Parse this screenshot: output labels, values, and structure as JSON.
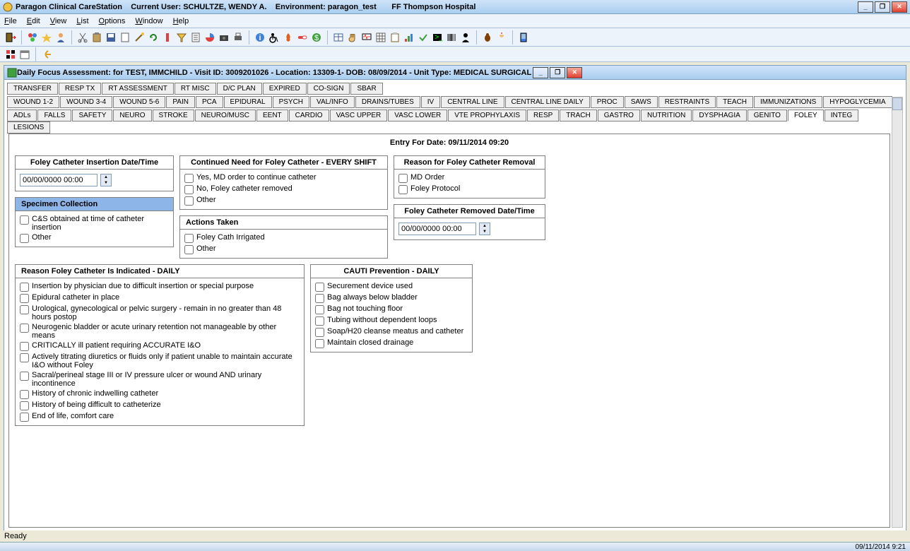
{
  "titlebar": {
    "app": "Paragon Clinical CareStation",
    "user_label": "Current User:",
    "user": "SCHULTZE, WENDY A.",
    "env_label": "Environment:",
    "env": "paragon_test",
    "facility": "FF Thompson Hospital"
  },
  "menu": [
    "File",
    "Edit",
    "View",
    "List",
    "Options",
    "Window",
    "Help"
  ],
  "panel_title": "Daily Focus Assessment:  for TEST, IMMCHILD - Visit ID: 3009201026 - Location: 13309-1- DOB: 08/09/2014 - Unit Type: MEDICAL SURGICAL",
  "tabs_row1": [
    "TRANSFER",
    "RESP TX",
    "RT ASSESSMENT",
    "RT MISC",
    "D/C PLAN",
    "EXPIRED",
    "CO-SIGN",
    "SBAR"
  ],
  "tabs_row2": [
    "WOUND 1-2",
    "WOUND 3-4",
    "WOUND 5-6",
    "PAIN",
    "PCA",
    "EPIDURAL",
    "PSYCH",
    "VAL/INFO",
    "DRAINS/TUBES",
    "IV",
    "CENTRAL LINE",
    "CENTRAL LINE DAILY",
    "PROC",
    "SAWS",
    "RESTRAINTS",
    "TEACH",
    "IMMUNIZATIONS",
    "HYPOGLYCEMIA"
  ],
  "tabs_row3": [
    "ADLs",
    "FALLS",
    "SAFETY",
    "NEURO",
    "STROKE",
    "NEURO/MUSC",
    "EENT",
    "CARDIO",
    "VASC UPPER",
    "VASC LOWER",
    "VTE PROPHYLAXIS",
    "RESP",
    "TRACH",
    "GASTRO",
    "NUTRITION",
    "DYSPHAGIA",
    "GENITO",
    "FOLEY",
    "INTEG",
    "LESIONS"
  ],
  "active_tab": "FOLEY",
  "entry_header": "Entry For Date: 09/11/2014 09:20",
  "box_insertion": {
    "title": "Foley Catheter Insertion Date/Time",
    "value": "00/00/0000 00:00"
  },
  "box_specimen": {
    "title": "Specimen Collection",
    "items": [
      "C&S obtained at time of catheter insertion",
      "Other"
    ]
  },
  "box_continued": {
    "title": "Continued Need for Foley Catheter - EVERY SHIFT",
    "items": [
      "Yes, MD order to continue catheter",
      "No, Foley catheter removed",
      "Other"
    ]
  },
  "box_actions": {
    "title": "Actions Taken",
    "items": [
      "Foley Cath Irrigated",
      "Other"
    ]
  },
  "box_removal_reason": {
    "title": "Reason for Foley Catheter Removal",
    "items": [
      "MD Order",
      "Foley Protocol"
    ]
  },
  "box_removed_dt": {
    "title": "Foley Catheter Removed Date/Time",
    "value": "00/00/0000 00:00"
  },
  "box_indicated": {
    "title": "Reason Foley Catheter Is Indicated - DAILY",
    "items": [
      "Insertion by physician due to difficult insertion or special purpose",
      "Epidural catheter in place",
      "Urological, gynecological or pelvic surgery - remain in no greater than 48 hours postop",
      "Neurogenic bladder or acute urinary retention not manageable by other means",
      "CRITICALLY ill patient requiring ACCURATE I&O",
      "Actively titrating diuretics or fluids only if patient unable to maintain accurate I&O without Foley",
      "Sacral/perineal stage III or IV pressure ulcer or wound AND urinary incontinence",
      "History of chronic indwelling catheter",
      "History of being difficult to catheterize",
      "End of life, comfort care"
    ]
  },
  "box_cauti": {
    "title": "CAUTI Prevention - DAILY",
    "items": [
      "Securement device used",
      "Bag always below bladder",
      "Bag not touching floor",
      "Tubing without dependent loops",
      "Soap/H20 cleanse meatus and catheter",
      "Maintain closed drainage"
    ]
  },
  "status": "Ready",
  "clock": "09/11/2014  9:21",
  "colors": {
    "titlebar_top": "#cfe3f8",
    "titlebar_bot": "#a9cef0",
    "highlight": "#8db5e8",
    "border": "#808080"
  }
}
